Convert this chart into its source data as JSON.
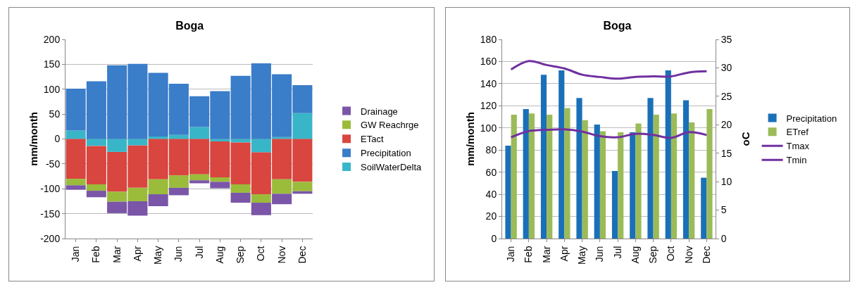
{
  "chart_data": [
    {
      "type": "bar",
      "title": "Boga",
      "ylabel": "mm/month",
      "stacked": true,
      "grid": "y",
      "legend": "right",
      "categories": [
        "Jan",
        "Feb",
        "Mar",
        "Apr",
        "May",
        "Jun",
        "Jul",
        "Aug",
        "Sep",
        "Oct",
        "Nov",
        "Dec"
      ],
      "ylim": [
        -200,
        200
      ],
      "yticks": [
        -200,
        -150,
        -100,
        -50,
        0,
        50,
        100,
        150,
        200
      ],
      "series": [
        {
          "name": "SoilWaterDelta",
          "color": "#38b6c8",
          "values": [
            17,
            -14,
            -26,
            -13,
            5,
            8,
            24,
            -5,
            -7,
            -27,
            4,
            52
          ]
        },
        {
          "name": "Precipitation",
          "color": "#3a7dc9",
          "values": [
            84,
            116,
            148,
            151,
            128,
            103,
            62,
            96,
            127,
            152,
            126,
            56
          ]
        },
        {
          "name": "ETact",
          "color": "#d9453f",
          "values": [
            -80,
            -77,
            -80,
            -85,
            -81,
            -73,
            -71,
            -72,
            -84,
            -84,
            -81,
            -86
          ]
        },
        {
          "name": "GW Reachrge",
          "color": "#9bbb3b",
          "values": [
            -13,
            -13,
            -20,
            -27,
            -30,
            -25,
            -12,
            -9,
            -17,
            -17,
            -29,
            -19
          ]
        },
        {
          "name": "Drainage",
          "color": "#7a55a8",
          "values": [
            -9,
            -13,
            -23,
            -29,
            -24,
            -15,
            -6,
            -13,
            -20,
            -25,
            -21,
            -5
          ]
        }
      ]
    },
    {
      "type": "bar",
      "title": "Boga",
      "ylabel": "mm/month",
      "y2label": "oC",
      "grid": "y",
      "legend": "right",
      "categories": [
        "Jan",
        "Feb",
        "Mar",
        "Apr",
        "May",
        "Jun",
        "Jul",
        "Aug",
        "Sep",
        "Oct",
        "Nov",
        "Dec"
      ],
      "ylim": [
        0,
        180
      ],
      "yticks": [
        0,
        20,
        40,
        60,
        80,
        100,
        120,
        140,
        160,
        180
      ],
      "y2lim": [
        0,
        35
      ],
      "y2ticks": [
        0,
        5,
        10,
        15,
        20,
        25,
        30,
        35
      ],
      "series": [
        {
          "name": "Precipitation",
          "color": "#1a70b8",
          "values": [
            84,
            117,
            148,
            152,
            127,
            103,
            61,
            96,
            127,
            152,
            125,
            55
          ]
        },
        {
          "name": "ETref",
          "color": "#9bbb59",
          "values": [
            112,
            113,
            112,
            118,
            107,
            97,
            96,
            104,
            112,
            113,
            105,
            117
          ]
        },
        {
          "name": "Tmax",
          "type": "line",
          "axis": "y2",
          "color": "#7030a0",
          "values": [
            29.7,
            31.2,
            30.5,
            29.9,
            28.8,
            28.4,
            28.1,
            28.4,
            28.5,
            28.5,
            29.2,
            29.4
          ]
        },
        {
          "name": "Tmin",
          "type": "line",
          "axis": "y2",
          "color": "#7030a0",
          "values": [
            17.8,
            18.9,
            19.1,
            19.2,
            18.8,
            18.0,
            17.8,
            18.4,
            18.2,
            17.7,
            18.7,
            18.2
          ]
        }
      ]
    }
  ]
}
